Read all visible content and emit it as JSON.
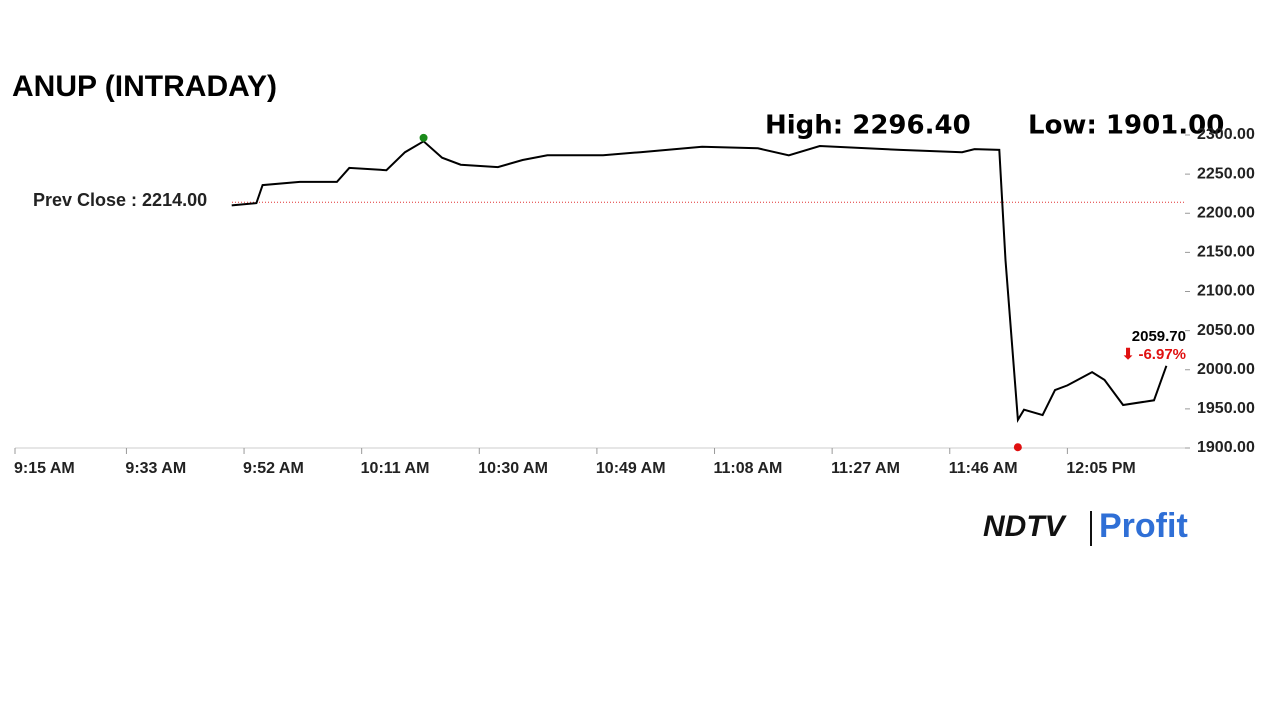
{
  "chart_data": {
    "type": "line",
    "title": "ANUP (INTRADAY)",
    "high_label": "High: 2296.40",
    "low_label": "Low: 1901.00",
    "prev_close": {
      "value": 2214,
      "label": "Prev Close : 2214.00"
    },
    "last_price_label": "2059.70",
    "change_label": "⬇ -6.97%",
    "high_point": {
      "x": 621,
      "y": 2296.4,
      "color": "#1a8a1a"
    },
    "low_point": {
      "x": 717,
      "y": 1901,
      "color": "#e01010"
    },
    "series": [
      {
        "color": "#000000",
        "x": [
          590,
          594,
          595,
          601,
          607,
          609,
          615,
          618,
          621,
          624,
          627,
          633,
          637,
          641,
          650,
          656,
          666,
          675,
          680,
          685,
          698,
          708,
          710,
          714,
          715,
          716,
          717,
          718,
          721,
          723,
          725,
          729,
          731,
          734,
          739,
          741
        ],
        "values": [
          2210,
          2213,
          2236,
          2240,
          2240,
          2258,
          2255,
          2278,
          2292,
          2271,
          2262,
          2259,
          2268,
          2274,
          2274,
          2278,
          2285,
          2283,
          2274,
          2286,
          2281,
          2278,
          2282,
          2281,
          2140,
          2038,
          1936,
          1949,
          1942,
          1974,
          1980,
          1997,
          1987,
          1955,
          1961,
          2005
        ]
      }
    ],
    "xlim": [
      555,
      744
    ],
    "xticks": [
      {
        "value": 555,
        "label": "9:15 AM"
      },
      {
        "value": 573,
        "label": "9:33 AM"
      },
      {
        "value": 592,
        "label": "9:52 AM"
      },
      {
        "value": 611,
        "label": "10:11 AM"
      },
      {
        "value": 630,
        "label": "10:30 AM"
      },
      {
        "value": 649,
        "label": "10:49 AM"
      },
      {
        "value": 668,
        "label": "11:08 AM"
      },
      {
        "value": 687,
        "label": "11:27 AM"
      },
      {
        "value": 706,
        "label": "11:46 AM"
      },
      {
        "value": 725,
        "label": "12:05 PM"
      }
    ],
    "ylim": [
      1900,
      2300
    ],
    "yticks": [
      {
        "value": 1900,
        "label": "1900.00"
      },
      {
        "value": 1950,
        "label": "1950.00"
      },
      {
        "value": 2000,
        "label": "2000.00"
      },
      {
        "value": 2050,
        "label": "2050.00"
      },
      {
        "value": 2100,
        "label": "2100.00"
      },
      {
        "value": 2150,
        "label": "2150.00"
      },
      {
        "value": 2200,
        "label": "2200.00"
      },
      {
        "value": 2250,
        "label": "2250.00"
      },
      {
        "value": 2300,
        "label": "2300.00"
      }
    ],
    "logo": {
      "left": "NDTV",
      "right": "Profit"
    }
  }
}
